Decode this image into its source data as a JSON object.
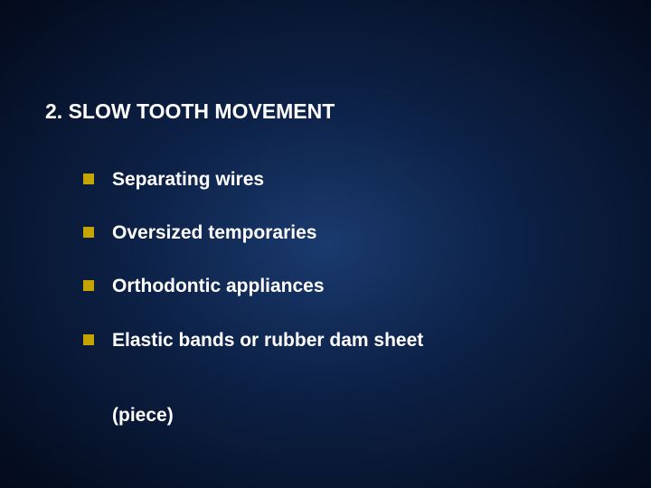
{
  "slide": {
    "background_gradient": {
      "type": "radial",
      "center_color": "#1a3a6e",
      "mid_color": "#0d2248",
      "outer_color": "#030a1a"
    },
    "title": "2. SLOW TOOTH MOVEMENT",
    "title_fontsize": 23,
    "title_color": "#ffffff",
    "bullet_marker_color": "#c6a400",
    "bullet_marker_size": 12,
    "bullet_fontsize": 21,
    "bullet_color": "#ffffff",
    "bullets": [
      {
        "text": "Separating wires"
      },
      {
        "text": "Oversized temporaries"
      },
      {
        "text": "Orthodontic appliances"
      },
      {
        "text": "Elastic bands or rubber dam sheet"
      }
    ],
    "continuation_text": "(piece)"
  }
}
